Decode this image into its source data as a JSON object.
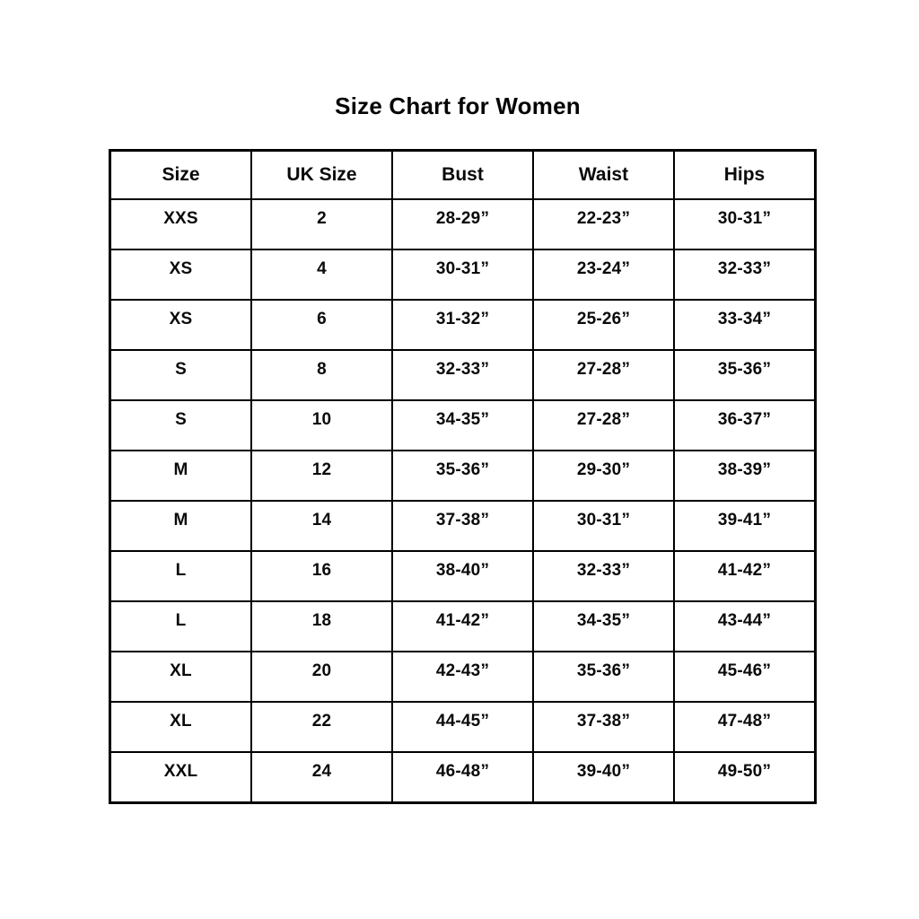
{
  "title": "Size Chart for Women",
  "chart_data": {
    "type": "table",
    "title": "Size Chart for Women",
    "columns": [
      "Size",
      "UK Size",
      "Bust",
      "Waist",
      "Hips"
    ],
    "rows": [
      [
        "XXS",
        "2",
        "28-29”",
        "22-23”",
        "30-31”"
      ],
      [
        "XS",
        "4",
        "30-31”",
        "23-24”",
        "32-33”"
      ],
      [
        "XS",
        "6",
        "31-32”",
        "25-26”",
        "33-34”"
      ],
      [
        "S",
        "8",
        "32-33”",
        "27-28”",
        "35-36”"
      ],
      [
        "S",
        "10",
        "34-35”",
        "27-28”",
        "36-37”"
      ],
      [
        "M",
        "12",
        "35-36”",
        "29-30”",
        "38-39”"
      ],
      [
        "M",
        "14",
        "37-38”",
        "30-31”",
        "39-41”"
      ],
      [
        "L",
        "16",
        "38-40”",
        "32-33”",
        "41-42”"
      ],
      [
        "L",
        "18",
        "41-42”",
        "34-35”",
        "43-44”"
      ],
      [
        "XL",
        "20",
        "42-43”",
        "35-36”",
        "45-46”"
      ],
      [
        "XL",
        "22",
        "44-45”",
        "37-38”",
        "47-48”"
      ],
      [
        "XXL",
        "24",
        "46-48”",
        "39-40”",
        "49-50”"
      ]
    ],
    "layout": {
      "grid": true,
      "border_color": "#000000",
      "background_color": "#ffffff",
      "text_color": "#000000"
    }
  }
}
